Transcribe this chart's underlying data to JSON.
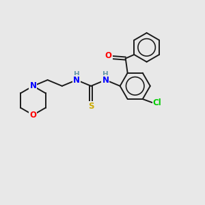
{
  "background_color": "#e8e8e8",
  "bond_color": "#1a1a1a",
  "atom_colors": {
    "N": "#0000ff",
    "O": "#ff0000",
    "S": "#ccaa00",
    "Cl": "#00cc00",
    "H_label": "#6699aa"
  },
  "figsize": [
    3.0,
    3.0
  ],
  "dpi": 100
}
